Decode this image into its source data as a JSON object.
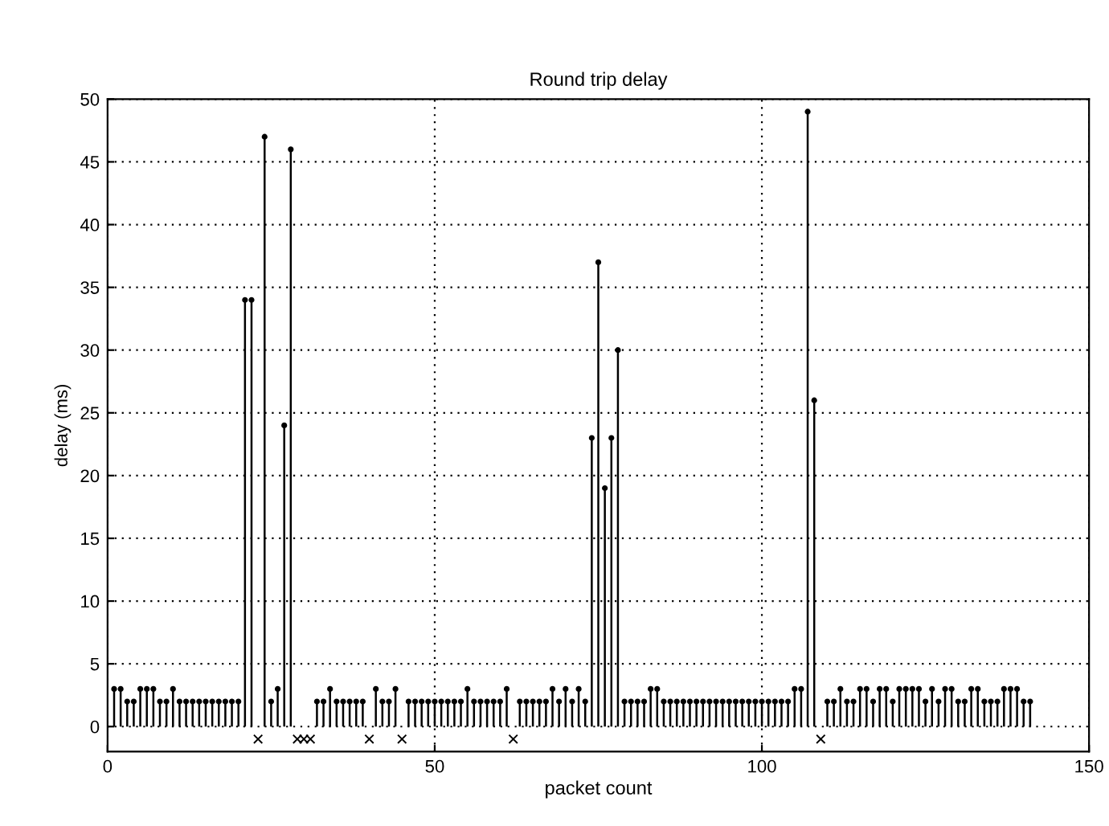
{
  "chart_data": {
    "type": "lollipop",
    "title": "Round trip delay",
    "xlabel": "packet count",
    "ylabel": "delay (ms)",
    "xlim": [
      0,
      150
    ],
    "xticks": [
      0,
      50,
      100,
      150
    ],
    "ylim": [
      -2,
      50
    ],
    "yticks": [
      0,
      5,
      10,
      15,
      20,
      25,
      30,
      35,
      40,
      45,
      50
    ],
    "grid": true,
    "series": [
      {
        "color": "#000000",
        "marker": "circle",
        "x": [
          1,
          2,
          3,
          4,
          5,
          6,
          7,
          8,
          9,
          10,
          11,
          12,
          13,
          14,
          15,
          16,
          17,
          18,
          19,
          20,
          21,
          22,
          23,
          24,
          25,
          26,
          27,
          28,
          29,
          30,
          31,
          32,
          33,
          34,
          35,
          36,
          37,
          38,
          39,
          40,
          41,
          42,
          43,
          44,
          45,
          46,
          47,
          48,
          49,
          50,
          51,
          52,
          53,
          54,
          55,
          56,
          57,
          58,
          59,
          60,
          61,
          62,
          63,
          64,
          65,
          66,
          67,
          68,
          69,
          70,
          71,
          72,
          73,
          74,
          75,
          76,
          77,
          78,
          79,
          80,
          81,
          82,
          83,
          84,
          85,
          86,
          87,
          88,
          89,
          90,
          91,
          92,
          93,
          94,
          95,
          96,
          97,
          98,
          99,
          100,
          101,
          102,
          103,
          104,
          105,
          106,
          107,
          108,
          109,
          110,
          111,
          112,
          113,
          114,
          115,
          116,
          117,
          118,
          119,
          120,
          121,
          122,
          123,
          124,
          125,
          126,
          127,
          128,
          129,
          130,
          131,
          132,
          133,
          134,
          135,
          136,
          137,
          138,
          139,
          140,
          141
        ],
        "values": [
          3,
          3,
          2,
          2,
          3,
          3,
          3,
          2,
          2,
          3,
          2,
          2,
          2,
          2,
          2,
          2,
          2,
          2,
          2,
          2,
          34,
          34,
          null,
          47,
          2,
          3,
          24,
          46,
          null,
          null,
          null,
          2,
          2,
          3,
          2,
          2,
          2,
          2,
          2,
          null,
          3,
          2,
          2,
          3,
          null,
          2,
          2,
          2,
          2,
          2,
          2,
          2,
          2,
          2,
          3,
          2,
          2,
          2,
          2,
          2,
          3,
          null,
          2,
          2,
          2,
          2,
          2,
          3,
          2,
          3,
          2,
          3,
          2,
          23,
          37,
          19,
          23,
          30,
          2,
          2,
          2,
          2,
          3,
          3,
          2,
          2,
          2,
          2,
          2,
          2,
          2,
          2,
          2,
          2,
          2,
          2,
          2,
          2,
          2,
          2,
          2,
          2,
          2,
          2,
          3,
          3,
          49,
          26,
          null,
          2,
          2,
          3,
          2,
          2,
          3,
          3,
          2,
          3,
          3,
          2,
          3,
          3,
          3,
          3,
          2,
          3,
          2,
          3,
          3,
          2,
          2,
          3,
          3,
          2,
          2,
          2,
          3,
          3,
          3,
          2,
          2
        ]
      },
      {
        "type": "scatter",
        "color": "#000000",
        "marker": "cross",
        "x": [
          23,
          29,
          30,
          31,
          40,
          45,
          62,
          109
        ],
        "values": [
          -1,
          -1,
          -1,
          -1,
          -1,
          -1,
          -1,
          -1
        ]
      }
    ]
  }
}
